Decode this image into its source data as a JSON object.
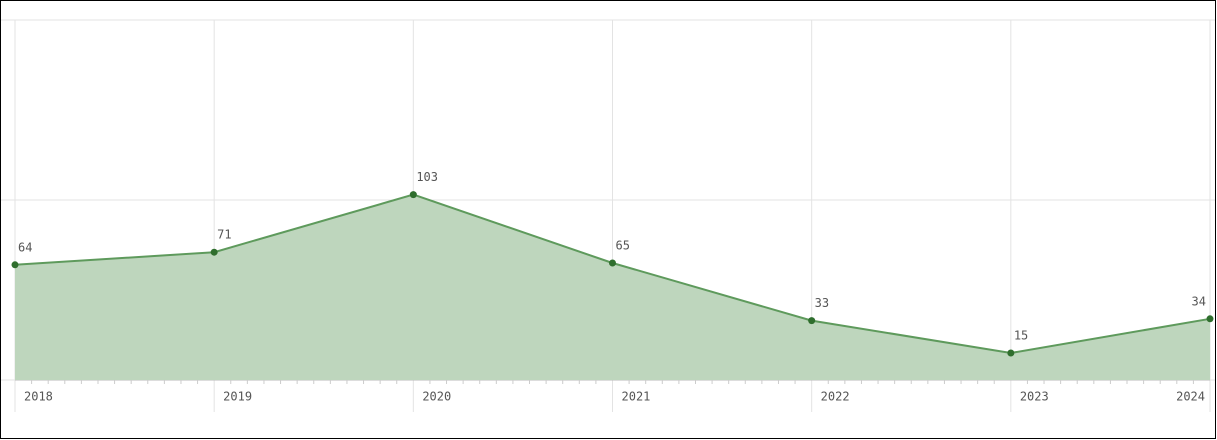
{
  "chart_data": {
    "type": "area",
    "categories": [
      "2018",
      "2019",
      "2020",
      "2021",
      "2022",
      "2023",
      "2024"
    ],
    "values": [
      64,
      71,
      103,
      65,
      33,
      15,
      34
    ],
    "color": "#5e9a5c",
    "fill": "#bed6bd",
    "point_color": "#2f6e2d",
    "ylim": [
      0,
      200
    ],
    "yticks": [
      0,
      100,
      200
    ],
    "grid": true
  }
}
